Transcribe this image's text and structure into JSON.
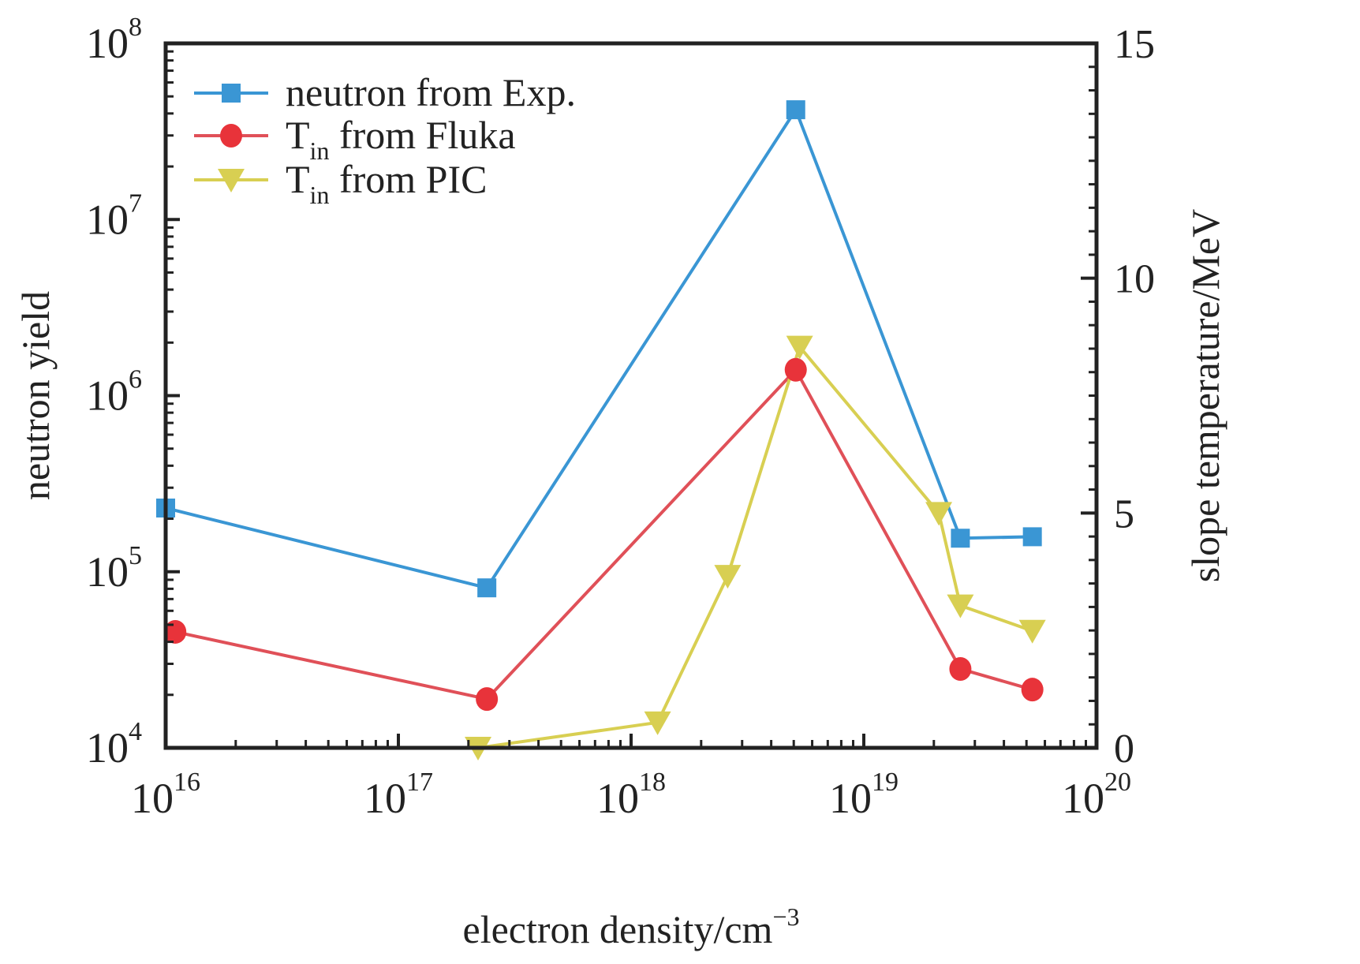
{
  "chart_data": {
    "type": "line",
    "title": "",
    "xlabel": "electron density/cm",
    "xlabel_sup": "−3",
    "ylabel": "neutron yield",
    "y2label": "slope temperature/MeV",
    "xscale": "log",
    "yscale": "log",
    "xlim": [
      1e+16,
      1e+20
    ],
    "ylim": [
      10000.0,
      100000000.0
    ],
    "y2lim": [
      0,
      15
    ],
    "grid": false,
    "legend_position": "top-left",
    "x_ticks": [
      {
        "base": "10",
        "exp": "16"
      },
      {
        "base": "10",
        "exp": "17"
      },
      {
        "base": "10",
        "exp": "18"
      },
      {
        "base": "10",
        "exp": "19"
      },
      {
        "base": "10",
        "exp": "20"
      }
    ],
    "y_ticks": [
      {
        "base": "10",
        "exp": "4"
      },
      {
        "base": "10",
        "exp": "5"
      },
      {
        "base": "10",
        "exp": "6"
      },
      {
        "base": "10",
        "exp": "7"
      },
      {
        "base": "10",
        "exp": "8"
      }
    ],
    "y2_ticks": [
      "0",
      "5",
      "10",
      "15"
    ],
    "series": [
      {
        "name": "neutron from Exp.",
        "name_main": "neutron from Exp.",
        "name_sub": "",
        "axis": "left",
        "marker": "square",
        "color": "#3a96d4",
        "x": [
          1e+16,
          2.4e+17,
          5.1e+18,
          2.6e+19,
          5.3e+19
        ],
        "values": [
          230000.0,
          81000.0,
          42000000.0,
          155000.0,
          158000.0
        ]
      },
      {
        "name": "T_in from Fluka",
        "name_main": "T",
        "name_sub": "in",
        "name_rest": " from Fluka",
        "axis": "right",
        "marker": "circle",
        "color": "#e8333a",
        "line_color": "#e05058",
        "x": [
          1.1e+16,
          2.4e+17,
          5.1e+18,
          2.6e+19,
          5.3e+19
        ],
        "values": [
          2.47,
          1.04,
          8.05,
          1.68,
          1.24
        ]
      },
      {
        "name": "T_in from PIC",
        "name_main": "T",
        "name_sub": "in",
        "name_rest": " from PIC",
        "axis": "right",
        "marker": "triangle-down",
        "color": "#d8cf52",
        "x": [
          2.2e+17,
          1.3e+18,
          2.6e+18,
          5.3e+18,
          2.1e+19,
          2.6e+19,
          5.3e+19
        ],
        "values": [
          0.0,
          0.54,
          3.66,
          8.54,
          5.0,
          3.03,
          2.49
        ]
      }
    ]
  }
}
